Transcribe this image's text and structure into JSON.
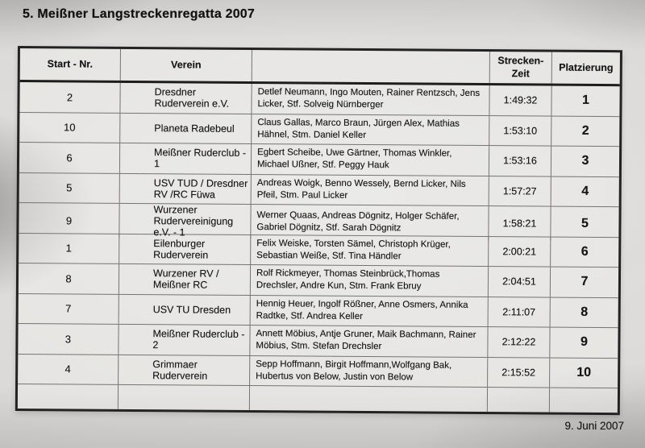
{
  "title": "5. Meißner Langstreckenregatta 2007",
  "date": "9. Juni 2007",
  "table": {
    "headers": {
      "start_nr": "Start - Nr.",
      "verein": "Verein",
      "crew": "",
      "zeit_line1": "Strecken-",
      "zeit_line2": "Zeit",
      "platzierung": "Platzierung"
    },
    "rows": [
      {
        "start_nr": "2",
        "verein": "Dresdner Ruderverein e.V.",
        "crew": "Detlef Neumann, Ingo Mouten, Rainer Rentzsch, Jens Licker, Stf. Solveig Nürnberger",
        "zeit": "1:49:32",
        "platz": "1"
      },
      {
        "start_nr": "10",
        "verein": "Planeta Radebeul",
        "crew": "Claus Gallas, Marco Braun, Jürgen Alex, Mathias Hähnel, Stm. Daniel Keller",
        "zeit": "1:53:10",
        "platz": "2"
      },
      {
        "start_nr": "6",
        "verein": "Meißner Ruderclub - 1",
        "crew": "Egbert Scheibe, Uwe Gärtner, Thomas Winkler, Michael Ußner, Stf. Peggy Hauk",
        "zeit": "1:53:16",
        "platz": "3"
      },
      {
        "start_nr": "5",
        "verein": "USV TUD / Dresdner RV /RC Füwa",
        "crew": "Andreas Woigk, Benno Wessely, Bernd Licker, Nils Pfeil, Stm. Paul Licker",
        "zeit": "1:57:27",
        "platz": "4"
      },
      {
        "start_nr": "9",
        "verein": "Wurzener Rudervereinigung e.V. - 1",
        "crew": "Werner Quaas, Andreas Dögnitz, Holger Schäfer, Gabriel Dögnitz, Stf. Sarah Dögnitz",
        "zeit": "1:58:21",
        "platz": "5"
      },
      {
        "start_nr": "1",
        "verein": "Eilenburger Ruderverein",
        "crew": "Felix Weiske, Torsten Sämel, Christoph Krüger, Sebastian Weiße, Stf. Tina Händler",
        "zeit": "2:00:21",
        "platz": "6"
      },
      {
        "start_nr": "8",
        "verein": "Wurzener RV / Meißner RC",
        "crew": "Rolf Rickmeyer, Thomas Steinbrück,Thomas Drechsler, Andre Kun, Stm. Frank Ebruy",
        "zeit": "2:04:51",
        "platz": "7"
      },
      {
        "start_nr": "7",
        "verein": "USV TU Dresden",
        "crew": "Hennig Heuer, Ingolf Rößner, Anne Osmers, Annika Radtke, Stf. Andrea Keller",
        "zeit": "2:11:07",
        "platz": "8"
      },
      {
        "start_nr": "3",
        "verein": "Meißner Ruderclub - 2",
        "crew": "Annett Möbius, Antje Gruner, Maik Bachmann, Rainer Möbius, Stm. Stefan Drechsler",
        "zeit": "2:12:22",
        "platz": "9"
      },
      {
        "start_nr": "4",
        "verein": "Grimmaer Ruderverein",
        "crew": "Sepp Hoffmann, Birgit Hoffmann,Wolfgang Bak, Hubertus von Below, Justin von Below",
        "zeit": "2:15:52",
        "platz": "10"
      }
    ]
  }
}
